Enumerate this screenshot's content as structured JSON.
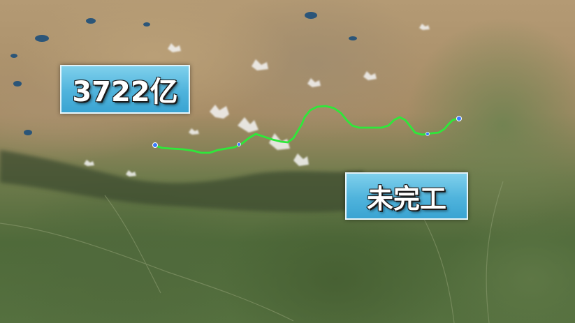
{
  "overlays": {
    "cost_label": "3722亿",
    "status_label": "未完工"
  },
  "map": {
    "route_color": "#2ee83a",
    "endpoint_color": "#3a7bff",
    "water_color": "#1e4f7a",
    "snow_color": "#f4f4f4"
  }
}
